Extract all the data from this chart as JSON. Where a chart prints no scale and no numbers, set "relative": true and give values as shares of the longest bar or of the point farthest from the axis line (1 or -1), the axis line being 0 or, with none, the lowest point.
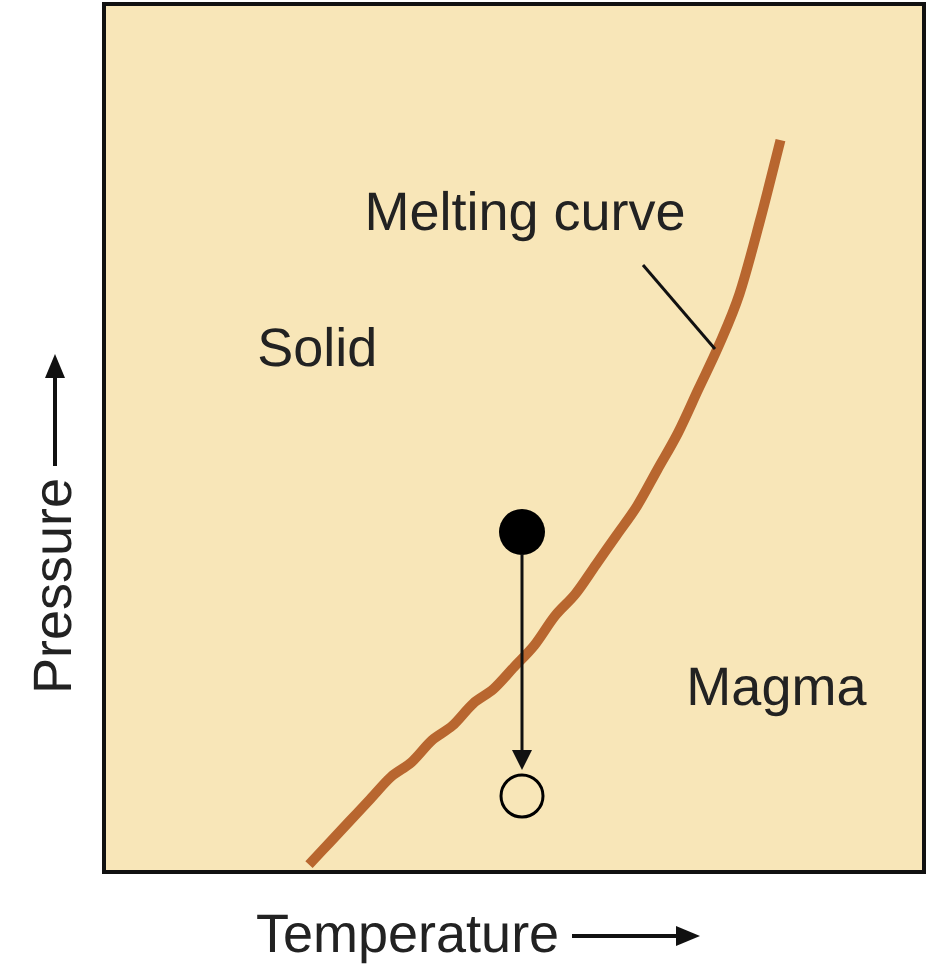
{
  "chart_data": {
    "type": "line",
    "relative": true,
    "xlabel": "Temperature",
    "ylabel": "Pressure",
    "tick_labels": false,
    "legend": false,
    "categories": [
      null,
      null,
      null,
      null,
      null,
      null,
      null,
      null,
      null,
      null,
      null,
      null,
      null,
      null,
      null,
      null,
      null,
      null,
      null,
      null,
      null,
      null,
      null,
      null,
      null,
      null,
      null,
      null,
      null,
      null,
      null,
      null,
      null,
      null,
      null,
      null,
      null,
      null,
      null,
      null,
      null
    ],
    "series": [
      {
        "name": "Melting curve",
        "color": "#b8662f",
        "values": [
          null,
          null,
          null,
          null,
          null,
          null,
          null,
          null,
          null,
          null,
          0.01,
          0.04,
          0.07,
          0.1,
          0.13,
          0.15,
          0.18,
          0.2,
          0.23,
          0.25,
          0.28,
          0.31,
          0.35,
          0.38,
          0.42,
          0.46,
          0.5,
          0.55,
          0.6,
          0.66,
          0.72,
          0.79,
          0.89,
          1,
          null,
          null,
          null,
          null,
          null,
          null,
          null
        ]
      }
    ],
    "annotations": [
      "Solid",
      "Magma"
    ]
  }
}
